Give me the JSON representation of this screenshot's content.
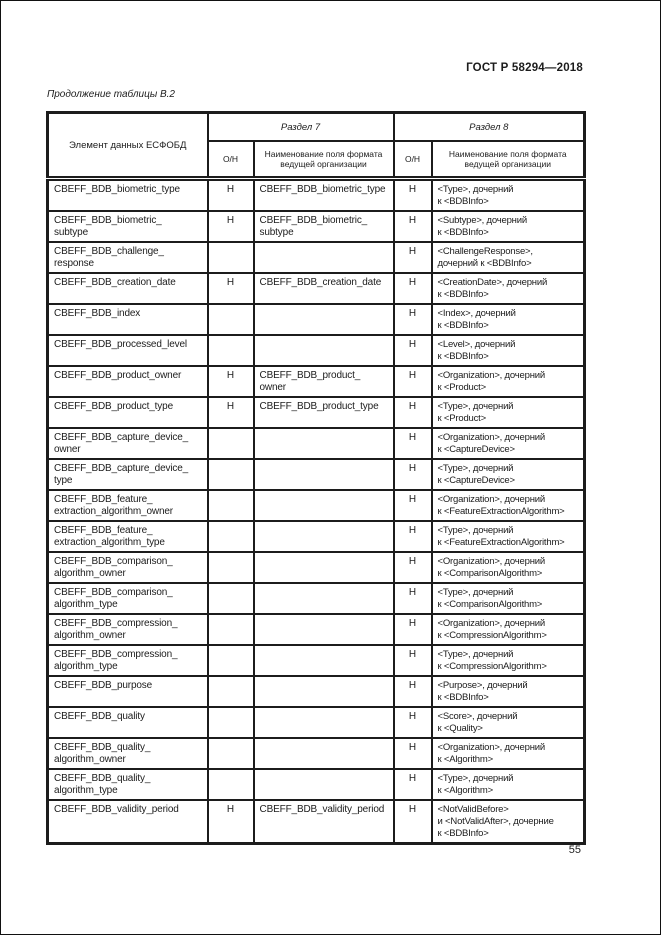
{
  "page": {
    "doc_number": "ГОСТ Р 58294—2018",
    "table_caption": "Продолжение таблицы В.2",
    "page_number": "55"
  },
  "table": {
    "header": {
      "element": "Элемент данных ЕСФОБД",
      "section7": "Раздел 7",
      "section8": "Раздел 8",
      "on": "О/Н",
      "field_name": "Наименование поля формата\nведущей организации"
    },
    "rows": [
      {
        "element": "CBEFF_BDB_biometric_type",
        "s7_on": "Н",
        "s7_name": "CBEFF_BDB_biometric_type",
        "s8_on": "Н",
        "s8_name": "<Type>, дочерний\nк <BDBInfo>"
      },
      {
        "element": "CBEFF_BDB_biometric_\nsubtype",
        "s7_on": "Н",
        "s7_name": "CBEFF_BDB_biometric_\nsubtype",
        "s8_on": "Н",
        "s8_name": "<Subtype>, дочерний\nк <BDBInfo>"
      },
      {
        "element": "CBEFF_BDB_challenge_\nresponse",
        "s7_on": "",
        "s7_name": "",
        "s8_on": "Н",
        "s8_name": "<ChallengeResponse>,\nдочерний к <BDBInfo>"
      },
      {
        "element": "CBEFF_BDB_creation_date",
        "s7_on": "Н",
        "s7_name": "CBEFF_BDB_creation_date",
        "s8_on": "Н",
        "s8_name": "<CreationDate>, дочерний\nк <BDBInfo>"
      },
      {
        "element": "CBEFF_BDB_index",
        "s7_on": "",
        "s7_name": "",
        "s8_on": "Н",
        "s8_name": "<Index>, дочерний\nк <BDBInfo>"
      },
      {
        "element": "CBEFF_BDB_processed_level",
        "s7_on": "",
        "s7_name": "",
        "s8_on": "Н",
        "s8_name": "<Level>, дочерний\nк <BDBInfo>"
      },
      {
        "element": "CBEFF_BDB_product_owner",
        "s7_on": "Н",
        "s7_name": "CBEFF_BDB_product_\nowner",
        "s8_on": "Н",
        "s8_name": "<Organization>, дочерний\nк <Product>"
      },
      {
        "element": "CBEFF_BDB_product_type",
        "s7_on": "Н",
        "s7_name": "CBEFF_BDB_product_type",
        "s8_on": "Н",
        "s8_name": "<Type>, дочерний\nк <Product>"
      },
      {
        "element": "CBEFF_BDB_capture_device_\nowner",
        "s7_on": "",
        "s7_name": "",
        "s8_on": "Н",
        "s8_name": "<Organization>, дочерний\nк <CaptureDevice>"
      },
      {
        "element": "CBEFF_BDB_capture_device_\ntype",
        "s7_on": "",
        "s7_name": "",
        "s8_on": "Н",
        "s8_name": "<Type>, дочерний\nк <CaptureDevice>"
      },
      {
        "element": "CBEFF_BDB_feature_\nextraction_algorithm_owner",
        "s7_on": "",
        "s7_name": "",
        "s8_on": "Н",
        "s8_name": "<Organization>, дочерний\nк <FeatureExtractionAlgorithm>"
      },
      {
        "element": "CBEFF_BDB_feature_\nextraction_algorithm_type",
        "s7_on": "",
        "s7_name": "",
        "s8_on": "Н",
        "s8_name": "<Type>, дочерний\nк <FeatureExtractionAlgorithm>"
      },
      {
        "element": "CBEFF_BDB_comparison_\nalgorithm_owner",
        "s7_on": "",
        "s7_name": "",
        "s8_on": "Н",
        "s8_name": "<Organization>, дочерний\nк <ComparisonAlgorithm>"
      },
      {
        "element": "CBEFF_BDB_comparison_\nalgorithm_type",
        "s7_on": "",
        "s7_name": "",
        "s8_on": "Н",
        "s8_name": "<Type>, дочерний\nк <ComparisonAlgorithm>"
      },
      {
        "element": "CBEFF_BDB_compression_\nalgorithm_owner",
        "s7_on": "",
        "s7_name": "",
        "s8_on": "Н",
        "s8_name": "<Organization>, дочерний\nк <CompressionAlgorithm>"
      },
      {
        "element": "CBEFF_BDB_compression_\nalgorithm_type",
        "s7_on": "",
        "s7_name": "",
        "s8_on": "Н",
        "s8_name": "<Type>, дочерний\nк <CompressionAlgorithm>"
      },
      {
        "element": "CBEFF_BDB_purpose",
        "s7_on": "",
        "s7_name": "",
        "s8_on": "Н",
        "s8_name": "<Purpose>, дочерний\nк <BDBInfo>"
      },
      {
        "element": "CBEFF_BDB_quality",
        "s7_on": "",
        "s7_name": "",
        "s8_on": "Н",
        "s8_name": "<Score>, дочерний\nк <Quality>"
      },
      {
        "element": "CBEFF_BDB_quality_\nalgorithm_owner",
        "s7_on": "",
        "s7_name": "",
        "s8_on": "Н",
        "s8_name": "<Organization>, дочерний\nк <Algorithm>"
      },
      {
        "element": "CBEFF_BDB_quality_\nalgorithm_type",
        "s7_on": "",
        "s7_name": "",
        "s8_on": "Н",
        "s8_name": "<Type>, дочерний\nк <Algorithm>"
      },
      {
        "element": "CBEFF_BDB_validity_period",
        "s7_on": "Н",
        "s7_name": "CBEFF_BDB_validity_period",
        "s8_on": "Н",
        "s8_name": "<NotValidBefore>\nи <NotValidAfter>, дочерние\nк <BDBInfo>"
      }
    ]
  }
}
